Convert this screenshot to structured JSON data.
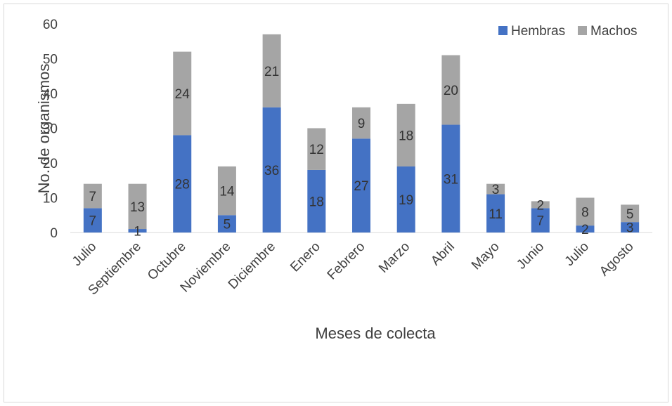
{
  "chart_data": {
    "type": "bar",
    "stacked": true,
    "title": "",
    "xlabel": "Meses de colecta",
    "ylabel": "No. de organismos",
    "ylim": [
      0,
      60
    ],
    "yticks": [
      0,
      10,
      20,
      30,
      40,
      50,
      60
    ],
    "grid": false,
    "legend_position": "top-right",
    "categories": [
      "Julio",
      "Septiembre",
      "Octubre",
      "Noviembre",
      "Diciembre",
      "Enero",
      "Febrero",
      "Marzo",
      "Abril",
      "Mayo",
      "Junio",
      "Julio",
      "Agosto"
    ],
    "series": [
      {
        "name": "Hembras",
        "color": "#4472c4",
        "values": [
          7,
          1,
          28,
          5,
          36,
          18,
          27,
          19,
          31,
          11,
          7,
          2,
          3
        ]
      },
      {
        "name": "Machos",
        "color": "#a5a5a5",
        "values": [
          7,
          13,
          24,
          14,
          21,
          12,
          9,
          18,
          20,
          3,
          2,
          8,
          5
        ]
      }
    ]
  }
}
